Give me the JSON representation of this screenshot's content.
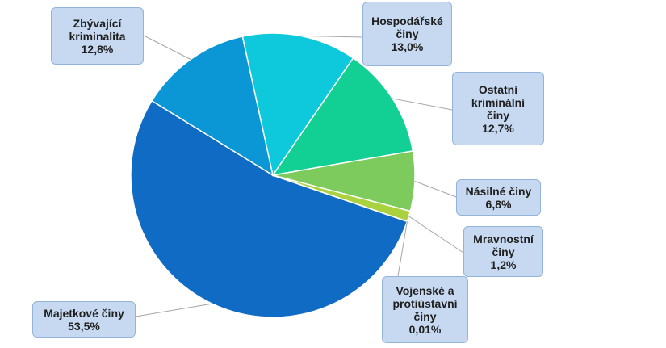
{
  "chart_data": {
    "type": "pie",
    "slices": [
      {
        "label": "Majetkové činy",
        "value": 53.5,
        "display": "53,5%",
        "color": "#0f6bc4"
      },
      {
        "label": "Zbývající kriminalita",
        "value": 12.8,
        "display": "12,8%",
        "color": "#0b97d6"
      },
      {
        "label": "Hospodářské činy",
        "value": 13.0,
        "display": "13,0%",
        "color": "#0ec9db"
      },
      {
        "label": "Ostatní kriminální činy",
        "value": 12.7,
        "display": "12,7%",
        "color": "#12cf94"
      },
      {
        "label": "Násilné činy",
        "value": 6.8,
        "display": "6,8%",
        "color": "#7ccb5c"
      },
      {
        "label": "Mravnostní činy",
        "value": 1.2,
        "display": "1,2%",
        "color": "#aad23f"
      },
      {
        "label": "Vojenské a protiústavní činy",
        "value": 0.01,
        "display": "0,01%",
        "color": "#2f7fd0"
      }
    ],
    "title": "",
    "legend": "none (data callouts)"
  },
  "callouts": [
    {
      "text": "Zbývající\nkriminalita\n12,8%"
    },
    {
      "text": "Hospodářské\nčiny\n13,0%"
    },
    {
      "text": "Ostatní\nkriminální\nčiny\n12,7%"
    },
    {
      "text": "Násilné činy\n6,8%"
    },
    {
      "text": "Mravnostní\nčiny\n1,2%"
    },
    {
      "text": "Vojenské a\nprotiústavní\nčiny\n0,01%"
    },
    {
      "text": "Majetkové činy\n53,5%"
    }
  ]
}
